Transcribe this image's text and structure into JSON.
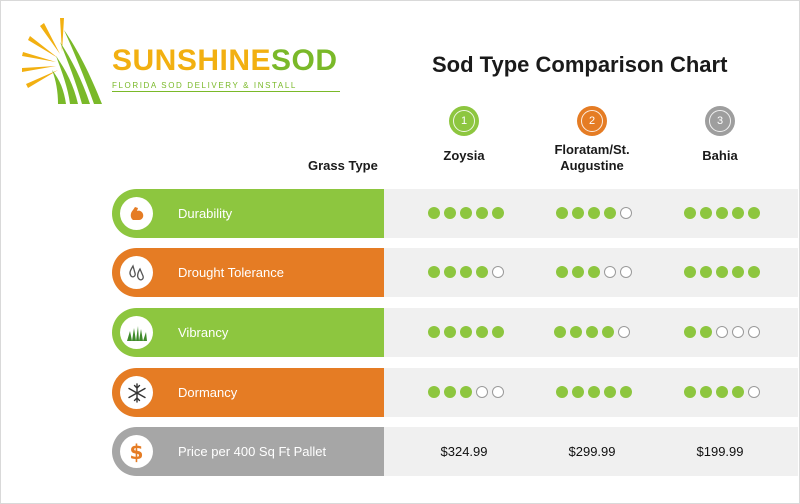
{
  "brand": {
    "name_part1": "SUNSHINE",
    "name_part2": "SOD",
    "tagline": "FLORIDA SOD DELIVERY & INSTALL",
    "colors": {
      "sun": "#f2b011",
      "sod": "#7ab929"
    }
  },
  "chart_title": "Sod Type Comparison Chart",
  "row_header_label": "Grass Type",
  "columns": [
    {
      "number": "1",
      "name": "Zoysia",
      "color": "#8dc63f"
    },
    {
      "number": "2",
      "name": "Floratam/St. Augustine",
      "color": "#e57c24"
    },
    {
      "number": "3",
      "name": "Bahia",
      "color": "#9e9e9e"
    }
  ],
  "rows": [
    {
      "label": "Durability",
      "icon": "flexed-arm-icon",
      "color": "#8dc63f",
      "ratings": [
        5,
        4,
        5
      ],
      "max": 5
    },
    {
      "label": "Drought Tolerance",
      "icon": "water-drops-icon",
      "color": "#e57c24",
      "ratings": [
        4,
        3,
        5
      ],
      "max": 5
    },
    {
      "label": "Vibrancy",
      "icon": "grass-icon",
      "color": "#8dc63f",
      "ratings": [
        5,
        4,
        2
      ],
      "max": 5
    },
    {
      "label": "Dormancy",
      "icon": "snowflake-icon",
      "color": "#e57c24",
      "ratings": [
        3,
        5,
        4
      ],
      "max": 5
    }
  ],
  "price_row": {
    "label": "Price per 400 Sq Ft Pallet",
    "icon": "dollar-icon",
    "icon_glyph": "$",
    "color": "#a6a6a6",
    "prices": [
      "$324.99",
      "$299.99",
      "$199.99"
    ]
  }
}
